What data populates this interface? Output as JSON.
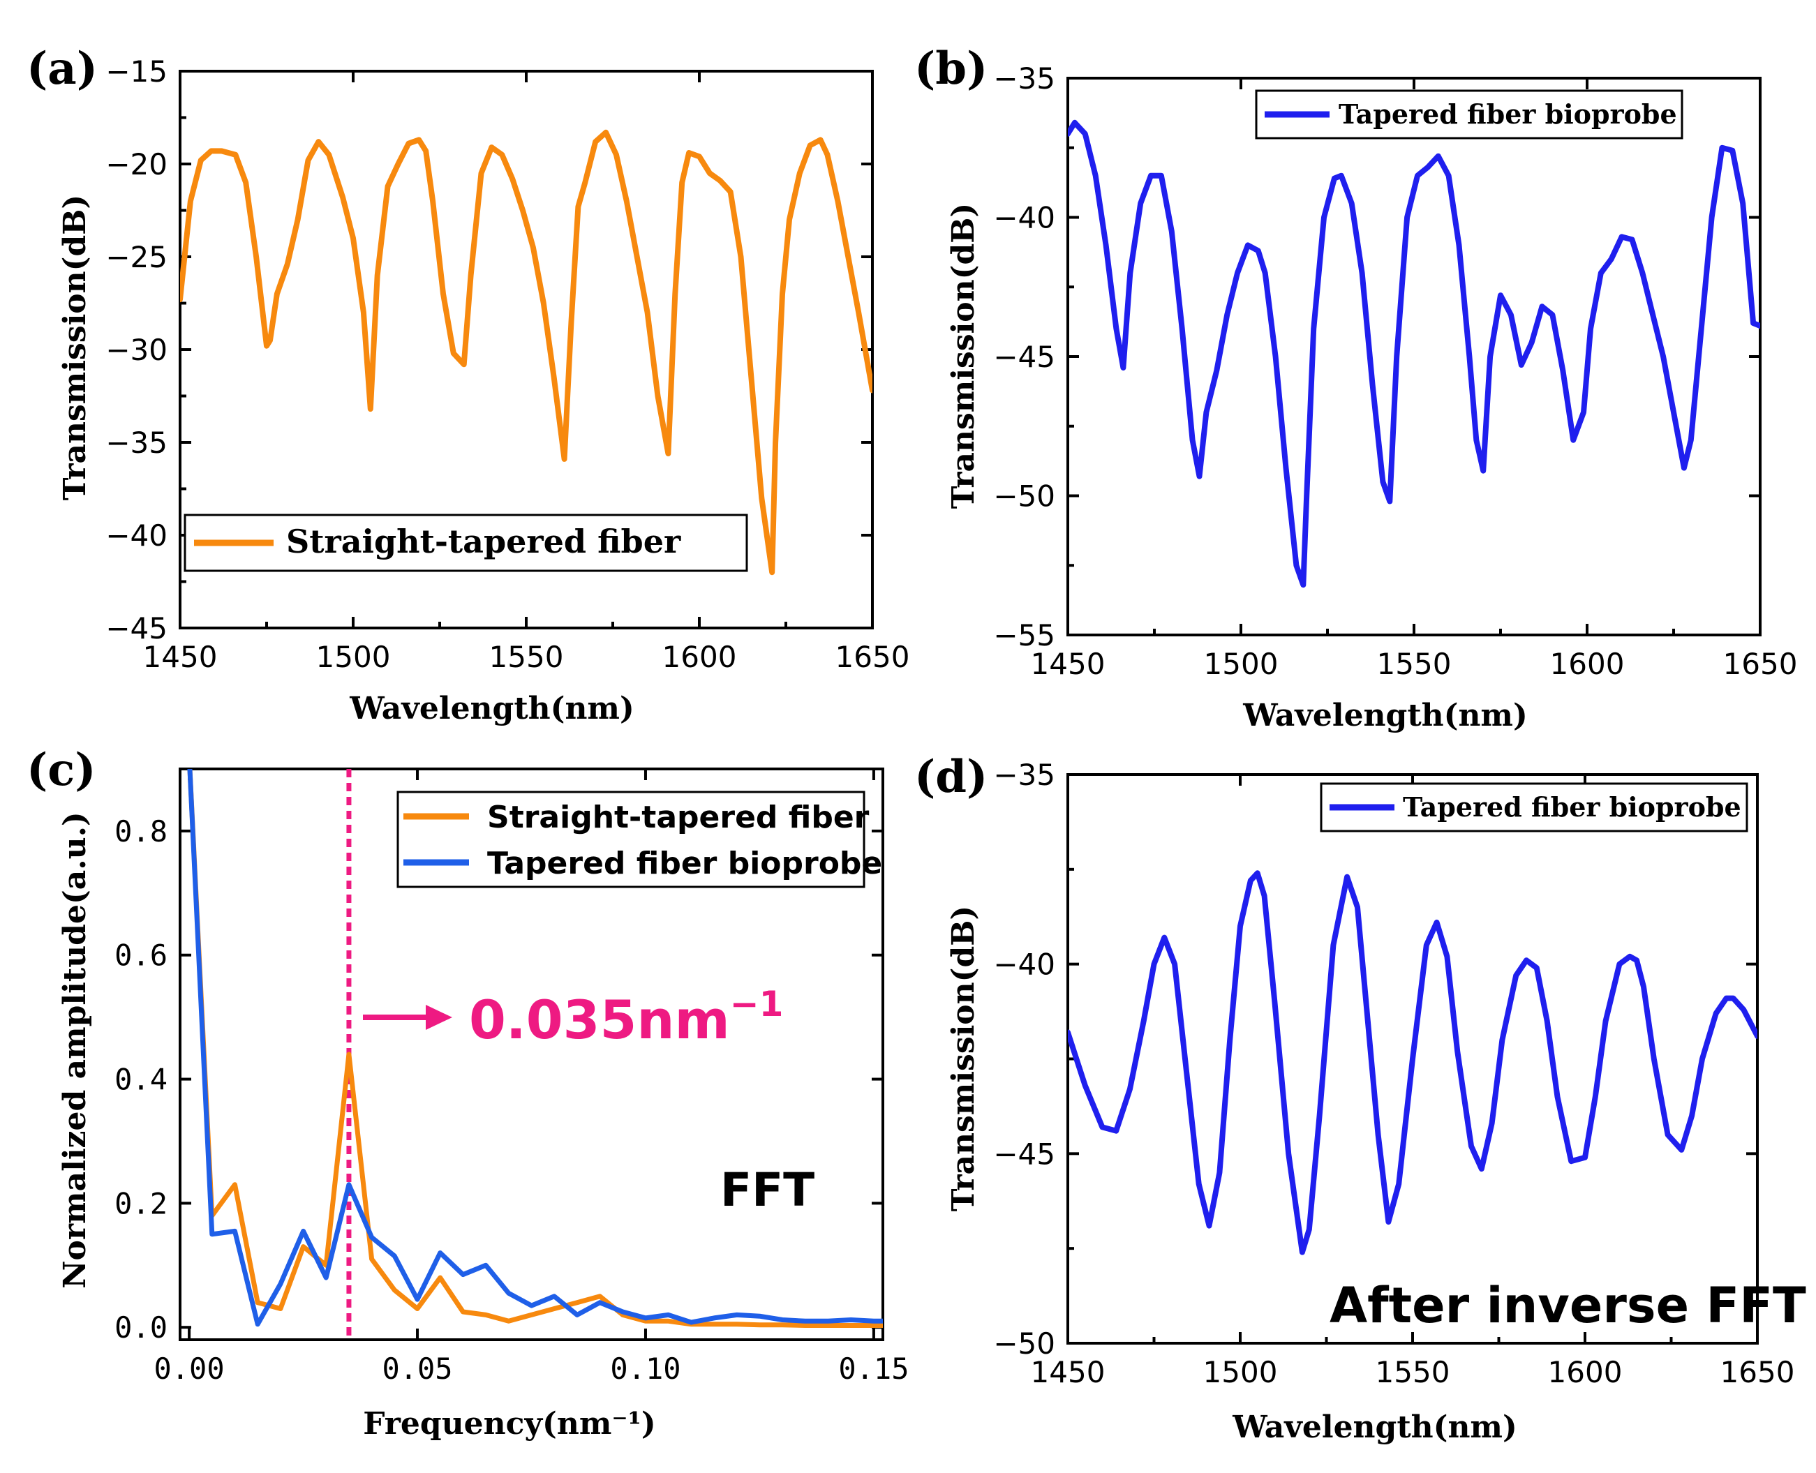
{
  "panels": {
    "a": {
      "label": "(a)"
    },
    "b": {
      "label": "(b)"
    },
    "c": {
      "label": "(c)"
    },
    "d": {
      "label": "(d)"
    }
  },
  "chart_data": [
    {
      "id": "a",
      "type": "line",
      "xlabel": "Wavelength(nm)",
      "ylabel": "Transmission(dB)",
      "xlim": [
        1450,
        1650
      ],
      "ylim": [
        -45,
        -15
      ],
      "xticks": [
        1450,
        1500,
        1550,
        1600,
        1650
      ],
      "yticks": [
        -15,
        -20,
        -25,
        -30,
        -35,
        -40,
        -45
      ],
      "xtick_labels": [
        "1450",
        "1500",
        "1550",
        "1600",
        "1650"
      ],
      "ytick_labels": [
        "−15",
        "−20",
        "−25",
        "−30",
        "−35",
        "−40",
        "−45"
      ],
      "legend": "bottom-left",
      "series": [
        {
          "name": "Straight-tapered fiber",
          "color": "#F7890E",
          "x": [
            1450,
            1453,
            1456,
            1459,
            1462,
            1466,
            1469,
            1472,
            1475,
            1476,
            1478,
            1481,
            1484,
            1487,
            1490,
            1493,
            1497,
            1500,
            1503,
            1505,
            1507,
            1510,
            1513,
            1516,
            1519,
            1521,
            1523,
            1526,
            1529,
            1532,
            1534,
            1537,
            1540,
            1543,
            1546,
            1549,
            1552,
            1555,
            1558,
            1561,
            1563,
            1565,
            1567,
            1570,
            1573,
            1576,
            1579,
            1582,
            1585,
            1588,
            1591,
            1593,
            1595,
            1597,
            1600,
            1603,
            1606,
            1609,
            1612,
            1615,
            1618,
            1621,
            1622,
            1624,
            1626,
            1629,
            1632,
            1635,
            1637,
            1640,
            1643,
            1646,
            1650
          ],
          "y": [
            -27.3,
            -22,
            -19.8,
            -19.3,
            -19.3,
            -19.5,
            -21,
            -25,
            -29.8,
            -29.5,
            -27,
            -25.4,
            -23,
            -19.8,
            -18.8,
            -19.5,
            -21.8,
            -24,
            -28,
            -33.2,
            -26,
            -21.2,
            -20,
            -18.9,
            -18.7,
            -19.3,
            -22,
            -27,
            -30.2,
            -30.8,
            -26,
            -20.5,
            -19.1,
            -19.5,
            -20.8,
            -22.5,
            -24.5,
            -27.5,
            -31.5,
            -35.9,
            -28.5,
            -22.3,
            -21,
            -18.8,
            -18.3,
            -19.5,
            -22,
            -25,
            -28,
            -32.5,
            -35.6,
            -27,
            -21,
            -19.4,
            -19.6,
            -20.5,
            -20.9,
            -21.5,
            -25,
            -31.5,
            -38,
            -42,
            -35,
            -27,
            -23,
            -20.5,
            -19,
            -18.7,
            -19.5,
            -22,
            -25,
            -28,
            -32.2
          ]
        }
      ]
    },
    {
      "id": "b",
      "type": "line",
      "xlabel": "Wavelength(nm)",
      "ylabel": "Transmission(dB)",
      "xlim": [
        1450,
        1650
      ],
      "ylim": [
        -55,
        -35
      ],
      "xticks": [
        1450,
        1500,
        1550,
        1600,
        1650
      ],
      "yticks": [
        -35,
        -40,
        -45,
        -50,
        -55
      ],
      "xtick_labels": [
        "1450",
        "1500",
        "1550",
        "1600",
        "1650"
      ],
      "ytick_labels": [
        "−35",
        "−40",
        "−45",
        "−50",
        "−55"
      ],
      "legend": "top-center",
      "series": [
        {
          "name": "Tapered fiber bioprobe",
          "color": "#1F1FEE",
          "x": [
            1450,
            1452,
            1455,
            1458,
            1461,
            1464,
            1466,
            1468,
            1471,
            1474,
            1477,
            1480,
            1483,
            1486,
            1488,
            1490,
            1493,
            1496,
            1499,
            1502,
            1505,
            1507,
            1510,
            1513,
            1516,
            1518,
            1519,
            1521,
            1524,
            1527,
            1529,
            1532,
            1535,
            1538,
            1541,
            1543,
            1545,
            1548,
            1551,
            1554,
            1557,
            1560,
            1563,
            1566,
            1568,
            1570,
            1572,
            1575,
            1578,
            1581,
            1584,
            1587,
            1590,
            1593,
            1596,
            1599,
            1601,
            1604,
            1607,
            1610,
            1613,
            1616,
            1619,
            1622,
            1625,
            1628,
            1630,
            1633,
            1636,
            1639,
            1642,
            1645,
            1648,
            1650
          ],
          "y": [
            -37,
            -36.6,
            -37,
            -38.5,
            -41,
            -44,
            -45.4,
            -42,
            -39.5,
            -38.5,
            -38.5,
            -40.5,
            -44,
            -48,
            -49.3,
            -47,
            -45.5,
            -43.5,
            -42,
            -41,
            -41.2,
            -42,
            -45,
            -49,
            -52.5,
            -53.2,
            -50,
            -44,
            -40,
            -38.6,
            -38.5,
            -39.5,
            -42,
            -46,
            -49.5,
            -50.2,
            -45,
            -40,
            -38.5,
            -38.2,
            -37.8,
            -38.5,
            -41,
            -45,
            -48,
            -49.1,
            -45,
            -42.8,
            -43.5,
            -45.3,
            -44.5,
            -43.2,
            -43.5,
            -45.5,
            -48,
            -47,
            -44,
            -42,
            -41.5,
            -40.7,
            -40.8,
            -42,
            -43.5,
            -45,
            -47,
            -49,
            -48,
            -44,
            -40,
            -37.5,
            -37.6,
            -39.5,
            -43.8,
            -43.9
          ]
        }
      ]
    },
    {
      "id": "c",
      "type": "line",
      "xlabel": "Frequency(nm⁻¹)",
      "ylabel": "Normalized amplitude(a.u.)",
      "xlim": [
        -0.002,
        0.152
      ],
      "ylim": [
        -0.02,
        0.9
      ],
      "xticks": [
        0.0,
        0.05,
        0.1,
        0.15
      ],
      "yticks": [
        0.0,
        0.2,
        0.4,
        0.6,
        0.8
      ],
      "xtick_labels": [
        "0.00",
        "0.05",
        "0.10",
        "0.15"
      ],
      "ytick_labels": [
        "0.0",
        "0.2",
        "0.4",
        "0.6",
        "0.8"
      ],
      "legend": "top-right",
      "annotations": {
        "vline_x": 0.035,
        "vline_color": "#EE1A82",
        "peak_text": "0.035nm",
        "peak_text_sup": "−1",
        "fft_text": "FFT"
      },
      "series": [
        {
          "name": "Straight-tapered fiber",
          "color": "#F7890E",
          "x": [
            0.0,
            0.005,
            0.01,
            0.015,
            0.02,
            0.025,
            0.03,
            0.035,
            0.04,
            0.045,
            0.05,
            0.055,
            0.06,
            0.065,
            0.07,
            0.075,
            0.08,
            0.085,
            0.09,
            0.095,
            0.1,
            0.105,
            0.11,
            0.115,
            0.12,
            0.125,
            0.13,
            0.135,
            0.14,
            0.145,
            0.15,
            0.152
          ],
          "y": [
            0.92,
            0.18,
            0.23,
            0.04,
            0.03,
            0.13,
            0.1,
            0.44,
            0.11,
            0.06,
            0.03,
            0.08,
            0.025,
            0.02,
            0.01,
            0.02,
            0.03,
            0.04,
            0.05,
            0.02,
            0.01,
            0.01,
            0.005,
            0.005,
            0.005,
            0.004,
            0.004,
            0.003,
            0.003,
            0.003,
            0.003,
            0.003
          ]
        },
        {
          "name": "Tapered fiber bioprobe",
          "color": "#1F5FE8",
          "x": [
            0.0,
            0.005,
            0.01,
            0.015,
            0.02,
            0.025,
            0.03,
            0.035,
            0.04,
            0.045,
            0.05,
            0.055,
            0.06,
            0.065,
            0.07,
            0.075,
            0.08,
            0.085,
            0.09,
            0.095,
            0.1,
            0.105,
            0.11,
            0.115,
            0.12,
            0.125,
            0.13,
            0.135,
            0.14,
            0.145,
            0.15,
            0.152
          ],
          "y": [
            0.92,
            0.15,
            0.155,
            0.005,
            0.07,
            0.155,
            0.08,
            0.23,
            0.145,
            0.115,
            0.045,
            0.12,
            0.085,
            0.1,
            0.055,
            0.035,
            0.05,
            0.02,
            0.04,
            0.025,
            0.015,
            0.02,
            0.008,
            0.015,
            0.02,
            0.018,
            0.012,
            0.01,
            0.01,
            0.012,
            0.01,
            0.01
          ]
        }
      ]
    },
    {
      "id": "d",
      "type": "line",
      "xlabel": "Wavelength(nm)",
      "ylabel": "Transmission(dB)",
      "xlim": [
        1450,
        1650
      ],
      "ylim": [
        -50,
        -35
      ],
      "xticks": [
        1450,
        1500,
        1550,
        1600,
        1650
      ],
      "yticks": [
        -35,
        -40,
        -45,
        -50
      ],
      "xtick_labels": [
        "1450",
        "1500",
        "1550",
        "1600",
        "1650"
      ],
      "ytick_labels": [
        "−35",
        "−40",
        "−45",
        "−50"
      ],
      "legend": "top-right",
      "annotations": {
        "text": "After inverse FFT"
      },
      "series": [
        {
          "name": "Tapered fiber bioprobe",
          "color": "#1F1FEE",
          "x": [
            1450,
            1455,
            1460,
            1464,
            1468,
            1472,
            1475,
            1478,
            1481,
            1484,
            1488,
            1491,
            1494,
            1497,
            1500,
            1503,
            1505,
            1507,
            1510,
            1514,
            1518,
            1520,
            1523,
            1527,
            1531,
            1534,
            1537,
            1540,
            1543,
            1546,
            1550,
            1554,
            1557,
            1560,
            1563,
            1567,
            1570,
            1573,
            1576,
            1580,
            1583,
            1586,
            1589,
            1592,
            1596,
            1600,
            1603,
            1606,
            1610,
            1613,
            1615,
            1617,
            1620,
            1624,
            1628,
            1631,
            1634,
            1638,
            1641,
            1643,
            1646,
            1650
          ],
          "y": [
            -41.8,
            -43.2,
            -44.3,
            -44.4,
            -43.3,
            -41.5,
            -40,
            -39.3,
            -40,
            -42.5,
            -45.8,
            -46.9,
            -45.5,
            -42,
            -39,
            -37.8,
            -37.6,
            -38.2,
            -41,
            -45,
            -47.6,
            -47,
            -44,
            -39.5,
            -37.7,
            -38.5,
            -41.5,
            -44.5,
            -46.8,
            -45.8,
            -42.5,
            -39.5,
            -38.9,
            -39.8,
            -42.3,
            -44.8,
            -45.4,
            -44.2,
            -42,
            -40.3,
            -39.9,
            -40.1,
            -41.5,
            -43.5,
            -45.2,
            -45.1,
            -43.5,
            -41.5,
            -40,
            -39.8,
            -39.9,
            -40.6,
            -42.5,
            -44.5,
            -44.9,
            -44,
            -42.5,
            -41.3,
            -40.9,
            -40.9,
            -41.2,
            -41.9
          ]
        }
      ]
    }
  ]
}
